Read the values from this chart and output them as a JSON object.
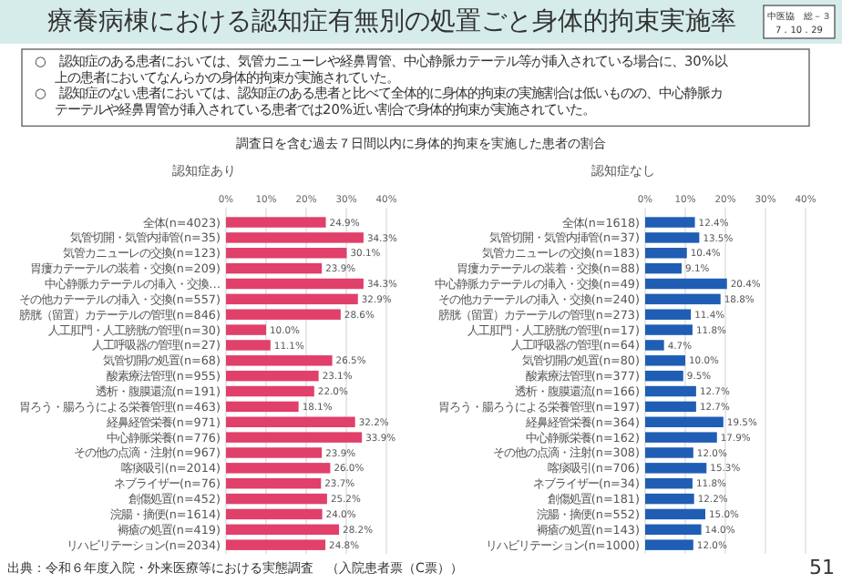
{
  "chart_data": [
    {
      "type": "bar",
      "orientation": "horizontal",
      "title": "認知症あり",
      "grid": "x",
      "categories": [
        "全体(n=4023)",
        "気管切開・気管内挿管(n=35)",
        "気管カニューレの交換(n=123)",
        "胃瘻カテーテルの装着・交換(n=209)",
        "中心静脈カテーテルの挿入・交換…",
        "その他カテーテルの挿入・交換(n=557)",
        "膀胱（留置）カテーテルの管理(n=846)",
        "人工肛門・人工膀胱の管理(n=30)",
        "人工呼吸器の管理(n=27)",
        "気管切開の処置(n=68)",
        "酸素療法管理(n=955)",
        "透析・腹膜還流(n=191)",
        "胃ろう・腸ろうによる栄養管理(n=463)",
        "経鼻経管栄養(n=971)",
        "中心静脈栄養(n=776)",
        "その他の点滴・注射(n=967)",
        "喀痰吸引(n=2014)",
        "ネブライザー(n=76)",
        "創傷処置(n=452)",
        "浣腸・摘便(n=1614)",
        "褥瘡の処置(n=419)",
        "リハビリテーション(n=2034)"
      ],
      "series": [
        {
          "color": "#e0406a",
          "values": [
            24.9,
            34.3,
            30.1,
            23.9,
            34.3,
            32.9,
            28.6,
            10.0,
            11.1,
            26.5,
            23.1,
            22.0,
            18.1,
            32.2,
            33.9,
            23.9,
            26.0,
            23.7,
            25.2,
            24.0,
            28.2,
            24.8
          ],
          "value_labels": [
            "24.9%",
            "34.3%",
            "30.1%",
            "23.9%",
            "34.3%",
            "32.9%",
            "28.6%",
            "10.0%",
            "11.1%",
            "26.5%",
            "23.1%",
            "22.0%",
            "18.1%",
            "32.2%",
            "33.9%",
            "23.9%",
            "26.0%",
            "23.7%",
            "25.2%",
            "24.0%",
            "28.2%",
            "24.8%"
          ]
        }
      ],
      "xlim": [
        0,
        40
      ],
      "xticks": [
        {
          "value": 0,
          "label": "0%"
        },
        {
          "value": 10,
          "label": "10%"
        },
        {
          "value": 20,
          "label": "20%"
        },
        {
          "value": 30,
          "label": "30%"
        },
        {
          "value": 40,
          "label": "40%"
        }
      ],
      "annotations": [
        "療養病棟における認知症有無別の処置ごと身体的拘束実施率",
        "○　認知症のある患者においては、気管カニューレや経鼻胃管、中心静脈カテーテル等が挿入されている場合に、30%以上の患者においてなんらかの身体的拘束が実施されていた。",
        "○　認知症のない患者においては、認知症のある患者と比べて全体的に身体的拘束の実施割合は低いものの、中心静脈カテーテルや経鼻胃管が挿入されている患者では20%近い割合で身体的拘束が実施されていた。",
        "調査日を含む過去７日間以内に身体的拘束を実施した患者の割合",
        "出典：令和６年度入院・外来医療等における実態調査　（入院患者票（C票））",
        "中医協　総－３",
        "7．10．29",
        "51"
      ]
    },
    {
      "type": "bar",
      "orientation": "horizontal",
      "title": "認知症なし",
      "grid": "x",
      "categories": [
        "全体(n=1618)",
        "気管切開・気管内挿管(n=37)",
        "気管カニューレの交換(n=183)",
        "胃瘻カテーテルの装着・交換(n=88)",
        "中心静脈カテーテルの挿入・交換(n=49)",
        "その他カテーテルの挿入・交換(n=240)",
        "膀胱（留置）カテーテルの管理(n=273)",
        "人工肛門・人工膀胱の管理(n=17)",
        "人工呼吸器の管理(n=64)",
        "気管切開の処置(n=80)",
        "酸素療法管理(n=377)",
        "透析・腹膜還流(n=166)",
        "胃ろう・腸ろうによる栄養管理(n=197)",
        "経鼻経管栄養(n=364)",
        "中心静脈栄養(n=162)",
        "その他の点滴・注射(n=308)",
        "喀痰吸引(n=706)",
        "ネブライザー(n=34)",
        "創傷処置(n=181)",
        "浣腸・摘便(n=552)",
        "褥瘡の処置(n=143)",
        "リハビリテーション(n=1000)"
      ],
      "series": [
        {
          "color": "#1f5eb4",
          "values": [
            12.4,
            13.5,
            10.4,
            9.1,
            20.4,
            18.8,
            11.4,
            11.8,
            4.7,
            10.0,
            9.5,
            12.7,
            12.7,
            19.5,
            17.9,
            12.0,
            15.3,
            11.8,
            12.2,
            15.0,
            14.0,
            12.0
          ],
          "value_labels": [
            "12.4%",
            "13.5%",
            "10.4%",
            "9.1%",
            "20.4%",
            "18.8%",
            "11.4%",
            "11.8%",
            "4.7%",
            "10.0%",
            "9.5%",
            "12.7%",
            "12.7%",
            "19.5%",
            "17.9%",
            "12.0%",
            "15.3%",
            "11.8%",
            "12.2%",
            "15.0%",
            "14.0%",
            "12.0%"
          ]
        }
      ],
      "xlim": [
        0,
        40
      ],
      "xticks": [
        {
          "value": 0,
          "label": "0%"
        },
        {
          "value": 10,
          "label": "10%"
        },
        {
          "value": 20,
          "label": "20%"
        },
        {
          "value": 30,
          "label": "30%"
        },
        {
          "value": 40,
          "label": "40%"
        }
      ]
    }
  ]
}
